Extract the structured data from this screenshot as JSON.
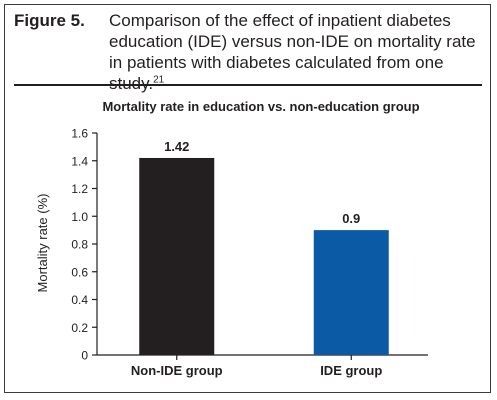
{
  "figure": {
    "label": "Figure 5.",
    "caption": "Comparison of the effect of inpatient diabetes education (IDE) versus non-IDE on mortality rate in patients with diabetes calculated from one study.",
    "citation": "21"
  },
  "chart_data": {
    "type": "bar",
    "title": "Mortality rate in education vs. non-education group",
    "xlabel": "",
    "ylabel": "Mortality rate (%)",
    "categories": [
      "Non-IDE group",
      "IDE group"
    ],
    "values": [
      1.42,
      0.9
    ],
    "value_labels": [
      "1.42",
      "0.9"
    ],
    "bar_colors": [
      "#231f20",
      "#0b5aa5"
    ],
    "ylim": [
      0,
      1.6
    ],
    "yticks": [
      0,
      0.2,
      0.4,
      0.6,
      0.8,
      1.0,
      1.2,
      1.4,
      1.6
    ],
    "ytick_labels": [
      "0",
      "0.2",
      "0.4",
      "0.6",
      "0.8",
      "1.0",
      "1.2",
      "1.4",
      "1.6"
    ],
    "grid": false,
    "legend": false
  }
}
